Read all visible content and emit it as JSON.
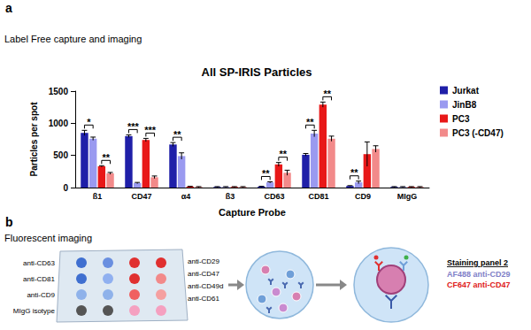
{
  "panel_a": {
    "letter": "a",
    "heading": "Label Free capture and imaging"
  },
  "chart_data": {
    "type": "bar",
    "title": "All SP-IRIS Particles",
    "x_label": "Capture Probe",
    "y_label": "Particles per spot",
    "categories": [
      "ß1",
      "CD47",
      "α4",
      "ß3",
      "CD63",
      "CD81",
      "CD9",
      "MIgG"
    ],
    "series": [
      {
        "name": "Jurkat",
        "color": "#1f1fa8",
        "values": [
          850,
          800,
          670,
          10,
          15,
          510,
          25,
          10
        ],
        "errors": [
          40,
          20,
          30,
          5,
          5,
          20,
          5,
          5
        ]
      },
      {
        "name": "JinB8",
        "color": "#9a9af0",
        "values": [
          760,
          70,
          490,
          10,
          80,
          840,
          80,
          10
        ],
        "errors": [
          25,
          10,
          50,
          5,
          10,
          50,
          20,
          5
        ]
      },
      {
        "name": "PC3",
        "color": "#e81818",
        "values": [
          330,
          740,
          15,
          10,
          360,
          1290,
          520,
          10
        ],
        "errors": [
          10,
          25,
          5,
          5,
          30,
          40,
          190,
          5
        ]
      },
      {
        "name": "PC3 (-CD47)",
        "color": "#f28a8a",
        "values": [
          220,
          160,
          10,
          10,
          230,
          760,
          600,
          10
        ],
        "errors": [
          15,
          20,
          5,
          5,
          40,
          40,
          50,
          5
        ]
      }
    ],
    "ylim": [
      0,
      1500
    ],
    "yticks": [
      0,
      500,
      1000,
      1500
    ],
    "grid": false,
    "legend": "right",
    "significance": [
      {
        "category": "ß1",
        "series": [
          "Jurkat",
          "JinB8"
        ],
        "label": "*"
      },
      {
        "category": "ß1",
        "series": [
          "PC3",
          "PC3 (-CD47)"
        ],
        "label": "**"
      },
      {
        "category": "CD47",
        "series": [
          "Jurkat",
          "JinB8"
        ],
        "label": "***"
      },
      {
        "category": "CD47",
        "series": [
          "PC3",
          "PC3 (-CD47)"
        ],
        "label": "***"
      },
      {
        "category": "α4",
        "series": [
          "Jurkat",
          "JinB8"
        ],
        "label": "**"
      },
      {
        "category": "CD63",
        "series": [
          "Jurkat",
          "JinB8"
        ],
        "label": "**"
      },
      {
        "category": "CD63",
        "series": [
          "PC3",
          "PC3 (-CD47)"
        ],
        "label": "**"
      },
      {
        "category": "CD81",
        "series": [
          "Jurkat",
          "JinB8"
        ],
        "label": "**"
      },
      {
        "category": "CD81",
        "series": [
          "PC3",
          "PC3 (-CD47)"
        ],
        "label": "**"
      },
      {
        "category": "CD9",
        "series": [
          "Jurkat",
          "JinB8"
        ],
        "label": "**"
      }
    ]
  },
  "panel_b": {
    "letter": "b",
    "heading": "Fluorescent imaging",
    "diagram": {
      "row_labels": [
        "anti-CD63",
        "anti-CD81",
        "anti-CD9",
        "MIgG isotype"
      ],
      "column_labels": [
        "anti-CD29",
        "anti-CD47",
        "anti-CD49d",
        "anti-CD61"
      ],
      "staining": {
        "title": "Staining panel 2",
        "entries": [
          "AF488 anti-CD29",
          "CF647 anti-CD47"
        ]
      }
    }
  }
}
